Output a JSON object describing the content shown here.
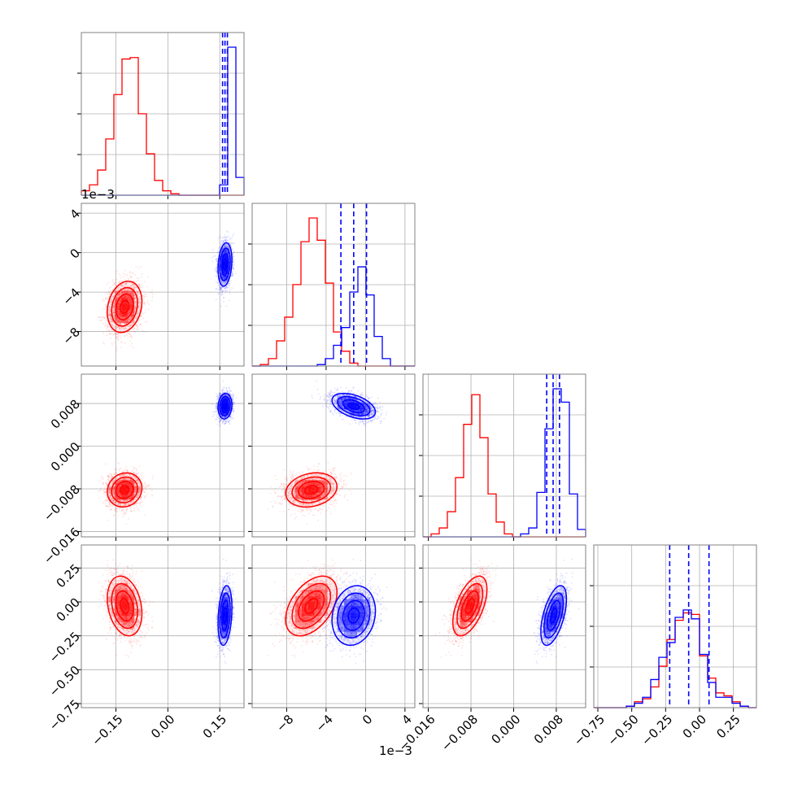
{
  "chart_data": {
    "type": "corner",
    "series": [
      {
        "name": "",
        "color": "#ff0000",
        "center": [
          -0.125,
          -0.0055,
          -0.0082,
          -0.03
        ],
        "sd": [
          0.025,
          0.0013,
          0.0016,
          0.11
        ],
        "corr": [
          [
            1,
            0.2,
            0.1,
            -0.25
          ],
          [
            0.2,
            1,
            0.2,
            0.45
          ],
          [
            0.1,
            0.2,
            1,
            0.55
          ],
          [
            -0.25,
            0.45,
            0.55,
            1
          ]
        ],
        "hist": [
          [
            0.03,
            0.07,
            0.17,
            0.38,
            0.68,
            0.92,
            0.93,
            0.55,
            0.28,
            0.1,
            0.03,
            0.01,
            0.0,
            0.0,
            0.0,
            0.0,
            0.0,
            0.0,
            0.0,
            0.0
          ],
          [
            0.0,
            0.01,
            0.05,
            0.17,
            0.33,
            0.55,
            0.84,
            1.0,
            0.85,
            0.56,
            0.23,
            0.1,
            0.02,
            0.0,
            0.0,
            0.0,
            0.0,
            0.0,
            0.0,
            0.0
          ],
          [
            0.0,
            0.02,
            0.06,
            0.17,
            0.4,
            0.76,
            0.96,
            0.67,
            0.29,
            0.1,
            0.02,
            0.0,
            0.0,
            0.0,
            0.0,
            0.0,
            0.0,
            0.0,
            0.0,
            0.0
          ],
          [
            0.0,
            0.0,
            0.0,
            0.0,
            0.01,
            0.04,
            0.06,
            0.14,
            0.28,
            0.46,
            0.59,
            0.64,
            0.63,
            0.35,
            0.2,
            0.1,
            0.08,
            0.04,
            0.01,
            0.0
          ]
        ]
      },
      {
        "name": "",
        "color": "#0000ff",
        "center": [
          0.165,
          -0.0012,
          0.0075,
          -0.1
        ],
        "sd": [
          0.01,
          0.0011,
          0.0012,
          0.11
        ],
        "corr": [
          [
            1,
            0.2,
            0.1,
            0.25
          ],
          [
            0.2,
            1,
            -0.45,
            0.15
          ],
          [
            0.1,
            -0.45,
            1,
            0.55
          ],
          [
            0.25,
            0.15,
            0.55,
            1
          ]
        ],
        "hist": [
          [
            0.0,
            0.0,
            0.0,
            0.0,
            0.0,
            0.0,
            0.0,
            0.0,
            0.0,
            0.0,
            0.0,
            0.0,
            0.0,
            0.0,
            0.0,
            0.0,
            0.0,
            0.07,
            1.0,
            0.12
          ],
          [
            0.0,
            0.0,
            0.0,
            0.0,
            0.0,
            0.0,
            0.0,
            0.0,
            0.01,
            0.05,
            0.14,
            0.26,
            0.5,
            0.67,
            0.48,
            0.2,
            0.05,
            0.0,
            0.0,
            0.0
          ],
          [
            0.0,
            0.0,
            0.0,
            0.0,
            0.0,
            0.0,
            0.0,
            0.0,
            0.0,
            0.0,
            0.0,
            0.0,
            0.02,
            0.06,
            0.3,
            0.73,
            1.0,
            0.91,
            0.29,
            0.05
          ],
          [
            0.0,
            0.0,
            0.0,
            0.0,
            0.01,
            0.03,
            0.07,
            0.19,
            0.34,
            0.44,
            0.61,
            0.66,
            0.6,
            0.36,
            0.17,
            0.07,
            0.07,
            0.03,
            0.01,
            0.0
          ]
        ]
      }
    ],
    "ranges": [
      [
        -0.25,
        0.22
      ],
      [
        -0.0115,
        0.005
      ],
      [
        -0.017,
        0.0135
      ],
      [
        -0.78,
        0.42
      ]
    ],
    "tick_values": [
      [
        -0.15,
        0.0,
        0.15
      ],
      [
        -0.008,
        -0.004,
        0.0,
        0.004
      ],
      [
        -0.016,
        -0.008,
        0.0,
        0.008
      ],
      [
        -0.75,
        -0.5,
        -0.25,
        0.0,
        0.25
      ]
    ],
    "tick_labels": [
      [
        "−0.15",
        "0.00",
        "0.15"
      ],
      [
        "−8",
        "−4",
        "0",
        "4"
      ],
      [
        "−0.016",
        "−0.008",
        "0.000",
        "0.008"
      ],
      [
        "−0.75",
        "−0.50",
        "−0.25",
        "0.00",
        "0.25"
      ]
    ],
    "row_tick_labels": [
      [],
      [
        "4",
        "0",
        "−4",
        "−8"
      ],
      [
        "0.008",
        "0.000",
        "−0.008",
        "−0.016"
      ],
      [
        "0.25",
        "0.00",
        "−0.25",
        "−0.50",
        "−0.75"
      ]
    ],
    "row_tick_values": [
      [],
      [
        0.004,
        0.0,
        -0.004,
        -0.008
      ],
      [
        0.008,
        0.0,
        -0.008,
        -0.016
      ],
      [
        0.25,
        0.0,
        -0.25,
        -0.5,
        -0.75
      ]
    ],
    "scale_label": "1e−3",
    "quantile_lines": [
      [
        0.158,
        0.165,
        0.172
      ],
      [
        -0.0025,
        -0.0012,
        0.0001
      ],
      [
        0.0062,
        0.0074,
        0.0086
      ],
      [
        -0.22,
        -0.08,
        0.07
      ]
    ],
    "quantile_color": "#0000ff",
    "hist_bins": 20,
    "grid": true,
    "samples_per_series": 4000
  }
}
